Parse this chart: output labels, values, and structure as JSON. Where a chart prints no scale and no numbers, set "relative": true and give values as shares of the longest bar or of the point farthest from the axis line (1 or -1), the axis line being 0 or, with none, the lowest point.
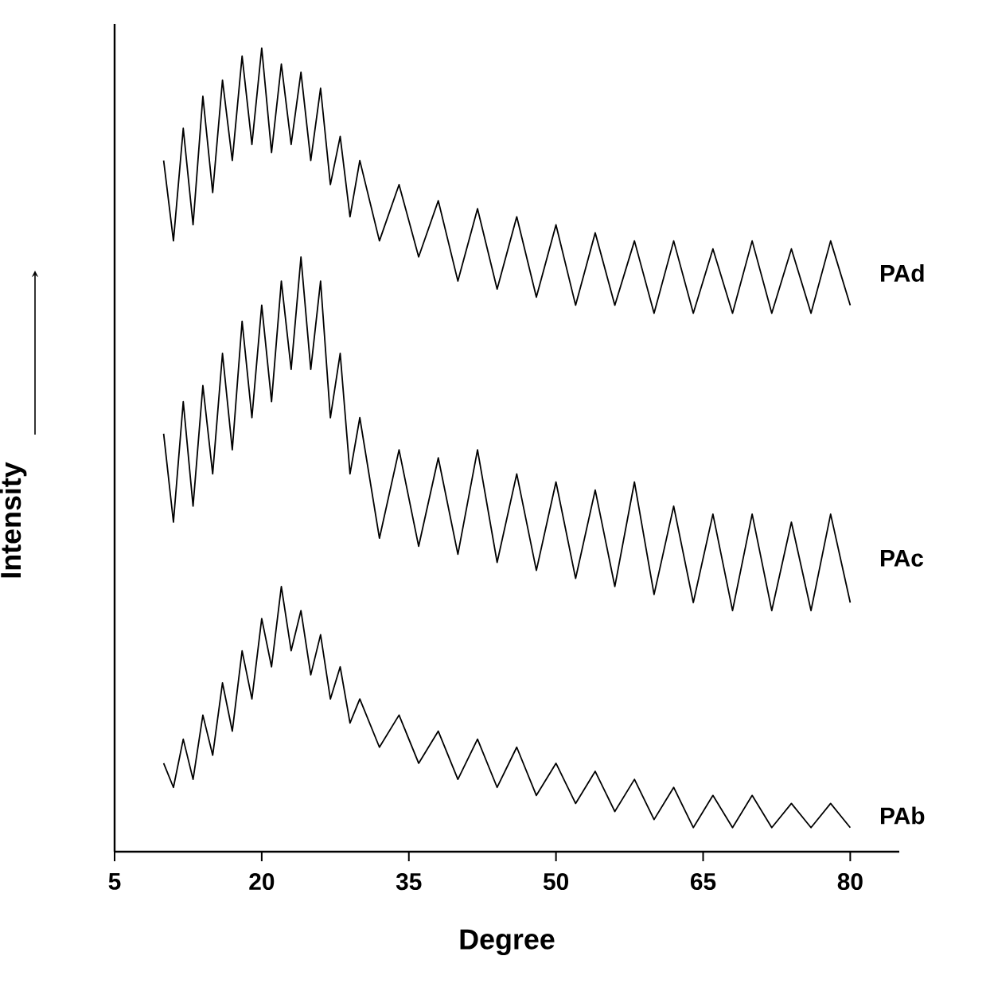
{
  "chart_data": {
    "type": "line",
    "relative": true,
    "xlabel": "Degree",
    "ylabel": "Intensity",
    "xlim": [
      5,
      85
    ],
    "xticks": [
      5,
      20,
      35,
      50,
      65,
      80
    ],
    "marker": "none",
    "line_style": "solid",
    "x": [
      10,
      11,
      12,
      13,
      14,
      15,
      16,
      17,
      18,
      19,
      20,
      21,
      22,
      23,
      24,
      25,
      26,
      27,
      28,
      29,
      30,
      32,
      34,
      36,
      38,
      40,
      42,
      44,
      46,
      48,
      50,
      52,
      54,
      56,
      58,
      60,
      62,
      64,
      66,
      68,
      70,
      72,
      74,
      76,
      78,
      80
    ],
    "series": [
      {
        "name": "PAd",
        "color": "#000000",
        "values": [
          0.86,
          0.76,
          0.9,
          0.78,
          0.94,
          0.82,
          0.96,
          0.86,
          0.99,
          0.88,
          1.0,
          0.87,
          0.98,
          0.88,
          0.97,
          0.86,
          0.95,
          0.83,
          0.89,
          0.79,
          0.86,
          0.76,
          0.83,
          0.74,
          0.81,
          0.71,
          0.8,
          0.7,
          0.79,
          0.69,
          0.78,
          0.68,
          0.77,
          0.68,
          0.76,
          0.67,
          0.76,
          0.67,
          0.75,
          0.67,
          0.76,
          0.67,
          0.75,
          0.67,
          0.76,
          0.68
        ]
      },
      {
        "name": "PAc",
        "color": "#000000",
        "values": [
          0.52,
          0.41,
          0.56,
          0.43,
          0.58,
          0.47,
          0.62,
          0.5,
          0.66,
          0.54,
          0.68,
          0.56,
          0.71,
          0.6,
          0.74,
          0.6,
          0.71,
          0.54,
          0.62,
          0.47,
          0.54,
          0.39,
          0.5,
          0.38,
          0.49,
          0.37,
          0.5,
          0.36,
          0.47,
          0.35,
          0.46,
          0.34,
          0.45,
          0.33,
          0.46,
          0.32,
          0.43,
          0.31,
          0.42,
          0.3,
          0.42,
          0.3,
          0.41,
          0.3,
          0.42,
          0.31
        ]
      },
      {
        "name": "PAb",
        "color": "#000000",
        "values": [
          0.11,
          0.08,
          0.14,
          0.09,
          0.17,
          0.12,
          0.21,
          0.15,
          0.25,
          0.19,
          0.29,
          0.23,
          0.33,
          0.25,
          0.3,
          0.22,
          0.27,
          0.19,
          0.23,
          0.16,
          0.19,
          0.13,
          0.17,
          0.11,
          0.15,
          0.09,
          0.14,
          0.08,
          0.13,
          0.07,
          0.11,
          0.06,
          0.1,
          0.05,
          0.09,
          0.04,
          0.08,
          0.03,
          0.07,
          0.03,
          0.07,
          0.03,
          0.06,
          0.03,
          0.06,
          0.03
        ]
      }
    ]
  }
}
